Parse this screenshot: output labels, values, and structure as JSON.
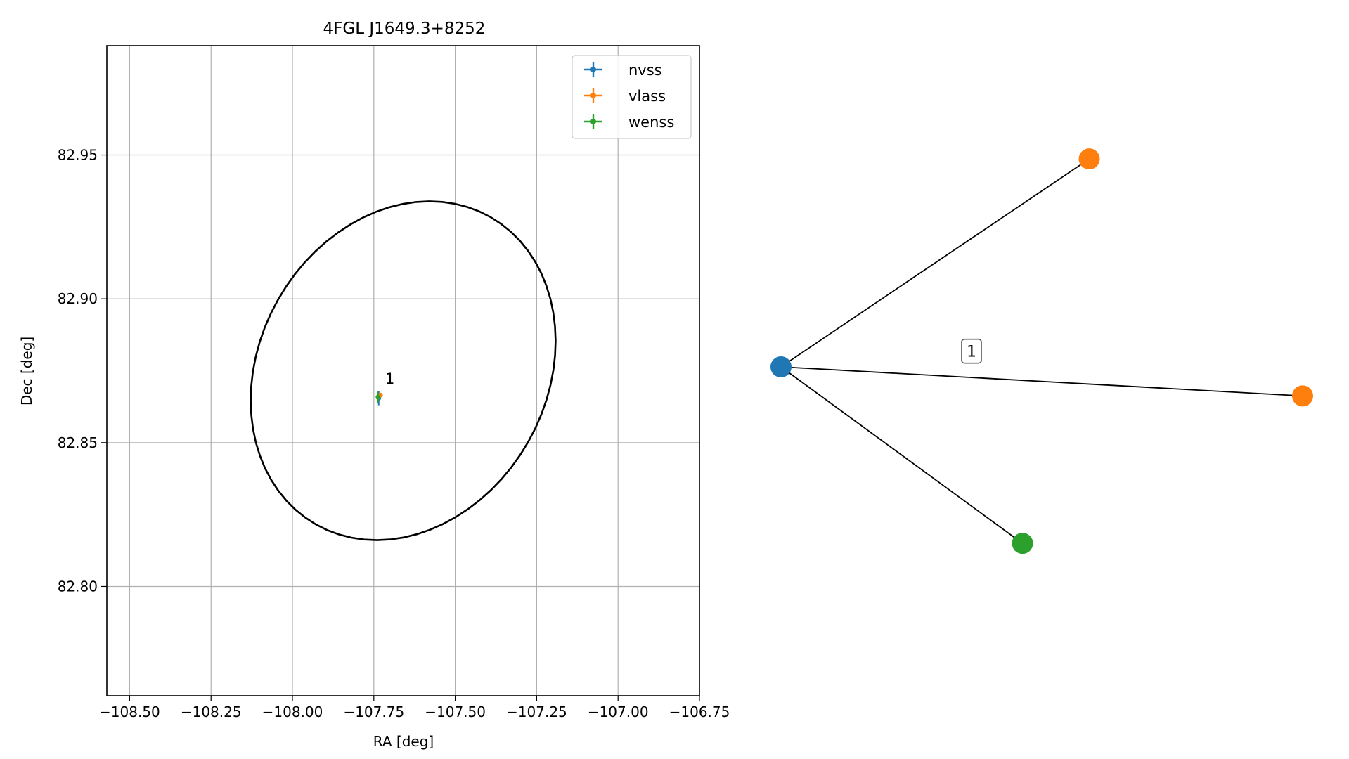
{
  "colors": {
    "nvss": "#1f77b4",
    "vlass": "#ff7f0e",
    "wenss": "#2ca02c",
    "ellipse": "#000000",
    "grid": "#b0b0b0",
    "edge": "#000000"
  },
  "chart_data": [
    {
      "type": "scatter",
      "title": "4FGL J1649.3+8252",
      "xlabel": "RA [deg]",
      "ylabel": "Dec [deg]",
      "xlim": [
        -108.57,
        -106.75
      ],
      "ylim": [
        82.762,
        82.988
      ],
      "xticks": [
        -108.5,
        -108.25,
        -108.0,
        -107.75,
        -107.5,
        -107.25,
        -107.0,
        -106.75
      ],
      "xtick_labels": [
        "−108.50",
        "−108.25",
        "−108.00",
        "−107.75",
        "−107.50",
        "−107.25",
        "−107.00",
        "−106.75"
      ],
      "yticks": [
        82.8,
        82.85,
        82.9,
        82.95
      ],
      "ytick_labels": [
        "82.80",
        "82.85",
        "82.90",
        "82.95"
      ],
      "grid": true,
      "legend_position": "top-right",
      "series": [
        {
          "name": "nvss",
          "x": [
            -107.735
          ],
          "y": [
            82.8655
          ],
          "xerr": [
            0.005
          ],
          "yerr": [
            0.0025
          ]
        },
        {
          "name": "vlass",
          "x": [
            -107.73
          ],
          "y": [
            82.8665
          ],
          "xerr": [
            0.002
          ],
          "yerr": [
            0.0008
          ]
        },
        {
          "name": "wenss",
          "x": [
            -107.737
          ],
          "y": [
            82.8658
          ],
          "xerr": [
            0.004
          ],
          "yerr": [
            0.002
          ]
        }
      ],
      "ellipse": {
        "center": [
          -107.66,
          82.875
        ],
        "semi_x": [
          0.405,
          0.235
        ],
        "semi_y": [
          0.038,
          -0.045
        ]
      },
      "annotations": [
        {
          "text": "1",
          "x": -107.715,
          "y": 82.8705
        }
      ]
    },
    {
      "type": "graph",
      "nodes": [
        {
          "id": "nvss",
          "x": 0.0,
          "y": 0.0
        },
        {
          "id": "vlass-a",
          "x": 0.591,
          "y": 0.536
        },
        {
          "id": "vlass-b",
          "x": 1.0,
          "y": -0.075
        },
        {
          "id": "wenss",
          "x": 0.463,
          "y": -0.455
        }
      ],
      "edges": [
        {
          "from": "nvss",
          "to": "vlass-a",
          "label": ""
        },
        {
          "from": "nvss",
          "to": "vlass-b",
          "label": "1"
        },
        {
          "from": "nvss",
          "to": "wenss",
          "label": ""
        }
      ]
    }
  ]
}
